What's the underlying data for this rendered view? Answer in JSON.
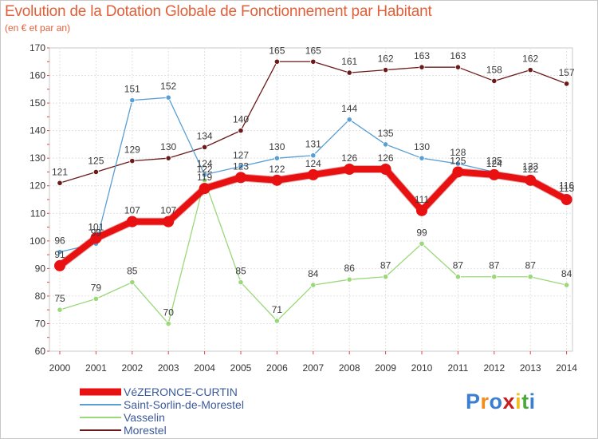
{
  "title": "Evolution de la Dotation Globale de Fonctionnement par Habitant",
  "subtitle": "(en € et par an)",
  "logo": {
    "text": "Proxiti",
    "letters": [
      "P",
      "r",
      "o",
      "x",
      "i",
      "t",
      "i"
    ],
    "colors": [
      "#3a7fd0",
      "#f28c1c",
      "#3a7fd0",
      "#c81e1e",
      "#f0c020",
      "#4aa83c",
      "#3a7fd0"
    ]
  },
  "chart_data": {
    "type": "line",
    "title": "Evolution de la Dotation Globale de Fonctionnement par Habitant",
    "subtitle": "(en € et par an)",
    "xlabel": "",
    "ylabel": "",
    "ylim": [
      60,
      170
    ],
    "yticks": [
      60,
      70,
      80,
      90,
      100,
      110,
      120,
      130,
      140,
      150,
      160,
      170
    ],
    "x": [
      "2000",
      "2001",
      "2002",
      "2003",
      "2004",
      "2005",
      "2006",
      "2007",
      "2008",
      "2009",
      "2010",
      "2011",
      "2012",
      "2013",
      "2014"
    ],
    "grid": true,
    "legend_position": "bottom-left",
    "series": [
      {
        "name": "Morestel",
        "color": "#6b1a1a",
        "values": [
          121,
          125,
          129,
          130,
          134,
          140,
          165,
          165,
          161,
          162,
          163,
          163,
          158,
          162,
          157
        ]
      },
      {
        "name": "Saint-Sorlin-de-Morestel",
        "color": "#5a9fd4",
        "values": [
          96,
          99,
          151,
          152,
          124,
          127,
          130,
          131,
          144,
          135,
          130,
          128,
          125,
          123,
          116
        ]
      },
      {
        "name": "Vasselin",
        "color": "#9ad87a",
        "values": [
          75,
          79,
          85,
          70,
          122,
          85,
          71,
          84,
          86,
          87,
          99,
          87,
          87,
          87,
          84
        ]
      },
      {
        "name": "VéZERONCE-CURTIN",
        "color": "#e81010",
        "values": [
          91,
          101,
          107,
          107,
          119,
          123,
          122,
          124,
          126,
          126,
          111,
          125,
          124,
          122,
          115
        ]
      }
    ],
    "legend": [
      "VéZERONCE-CURTIN",
      "Saint-Sorlin-de-Morestel",
      "Vasselin",
      "Morestel"
    ]
  }
}
